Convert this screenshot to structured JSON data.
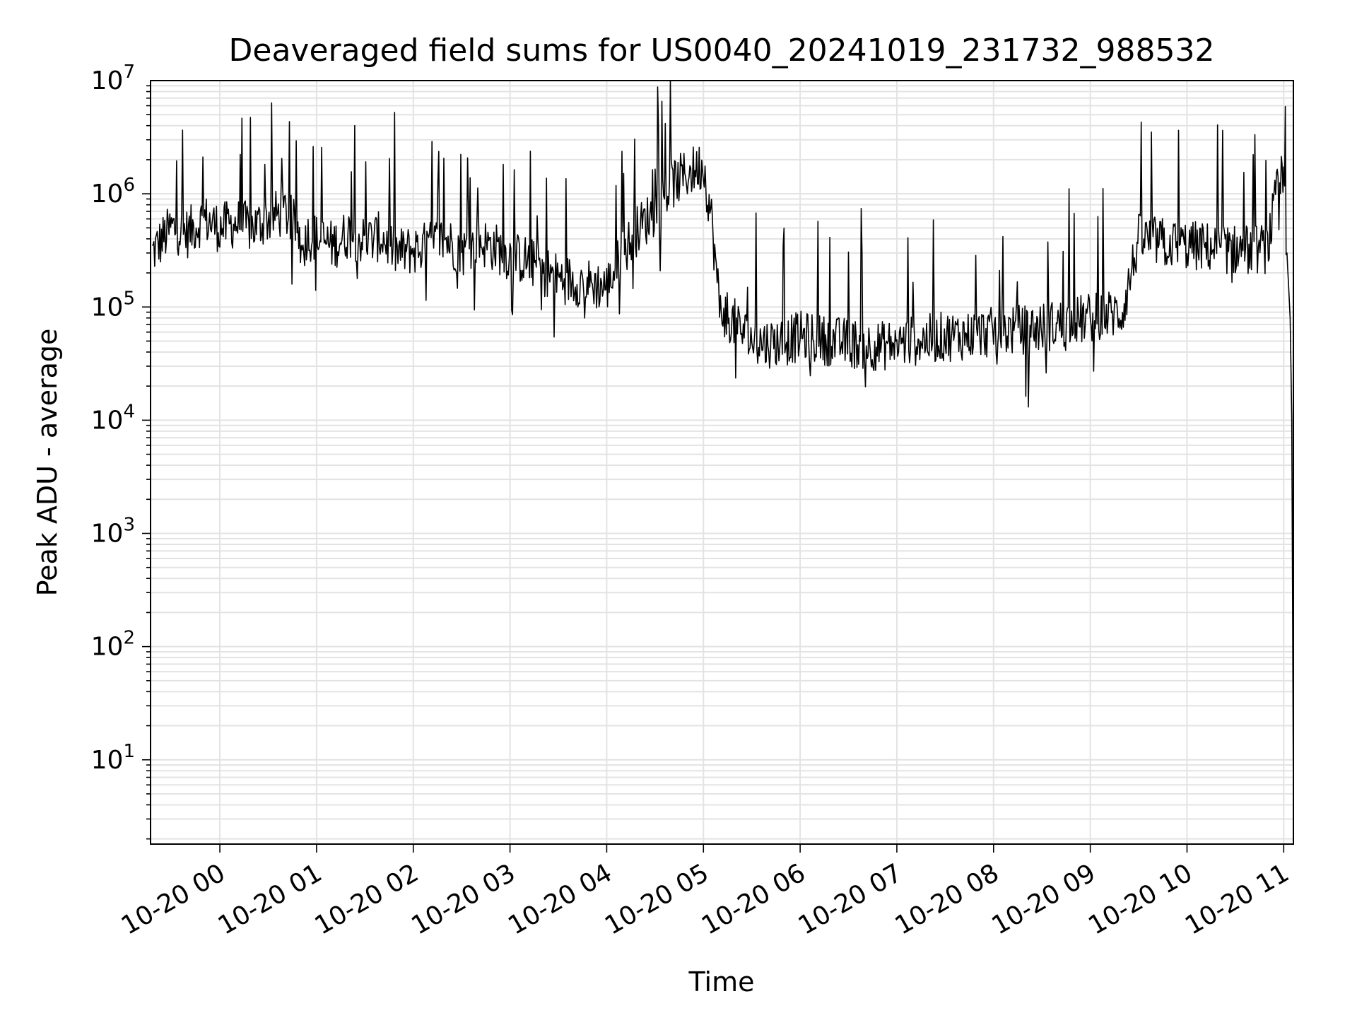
{
  "chart_data": {
    "type": "line",
    "title": "Deaveraged field sums for US0040_20241019_231732_988532",
    "xlabel": "Time",
    "ylabel": "Peak ADU - average",
    "yscale": "log",
    "xlim": [
      "2024-10-19 23:17",
      "2024-10-20 11:06"
    ],
    "ylim": [
      1.8,
      10000000
    ],
    "grid": true,
    "line_color": "#000000",
    "x_ticks": [
      {
        "value": "2024-10-20 00:00",
        "label": "10-20 00"
      },
      {
        "value": "2024-10-20 01:00",
        "label": "10-20 01"
      },
      {
        "value": "2024-10-20 02:00",
        "label": "10-20 02"
      },
      {
        "value": "2024-10-20 03:00",
        "label": "10-20 03"
      },
      {
        "value": "2024-10-20 04:00",
        "label": "10-20 04"
      },
      {
        "value": "2024-10-20 05:00",
        "label": "10-20 05"
      },
      {
        "value": "2024-10-20 06:00",
        "label": "10-20 06"
      },
      {
        "value": "2024-10-20 07:00",
        "label": "10-20 07"
      },
      {
        "value": "2024-10-20 08:00",
        "label": "10-20 08"
      },
      {
        "value": "2024-10-20 09:00",
        "label": "10-20 09"
      },
      {
        "value": "2024-10-20 10:00",
        "label": "10-20 10"
      },
      {
        "value": "2024-10-20 11:00",
        "label": "10-20 11"
      }
    ],
    "y_ticks": [
      {
        "value": 10,
        "base": "10",
        "exp": "1"
      },
      {
        "value": 100,
        "base": "10",
        "exp": "2"
      },
      {
        "value": 1000,
        "base": "10",
        "exp": "3"
      },
      {
        "value": 10000,
        "base": "10",
        "exp": "4"
      },
      {
        "value": 100000,
        "base": "10",
        "exp": "5"
      },
      {
        "value": 1000000,
        "base": "10",
        "exp": "6"
      },
      {
        "value": 10000000,
        "base": "10",
        "exp": "7"
      }
    ],
    "series": [
      {
        "x": [
          "2024-10-19 23:18",
          "2024-10-19 23:30",
          "2024-10-19 23:40",
          "2024-10-19 23:50",
          "2024-10-20 00:00",
          "2024-10-20 00:10",
          "2024-10-20 00:20",
          "2024-10-20 00:30",
          "2024-10-20 00:40",
          "2024-10-20 00:50",
          "2024-10-20 01:00",
          "2024-10-20 01:10",
          "2024-10-20 01:20",
          "2024-10-20 01:30",
          "2024-10-20 01:40",
          "2024-10-20 01:50",
          "2024-10-20 02:00",
          "2024-10-20 02:10",
          "2024-10-20 02:20",
          "2024-10-20 02:30",
          "2024-10-20 02:40",
          "2024-10-20 02:50",
          "2024-10-20 03:00",
          "2024-10-20 03:10",
          "2024-10-20 03:20",
          "2024-10-20 03:30",
          "2024-10-20 03:40",
          "2024-10-20 03:50",
          "2024-10-20 04:00",
          "2024-10-20 04:10",
          "2024-10-20 04:20",
          "2024-10-20 04:30",
          "2024-10-20 04:40",
          "2024-10-20 04:50",
          "2024-10-20 05:00",
          "2024-10-20 05:05",
          "2024-10-20 05:10",
          "2024-10-20 05:20",
          "2024-10-20 05:30",
          "2024-10-20 05:40",
          "2024-10-20 05:50",
          "2024-10-20 06:00",
          "2024-10-20 06:10",
          "2024-10-20 06:20",
          "2024-10-20 06:30",
          "2024-10-20 06:40",
          "2024-10-20 06:50",
          "2024-10-20 07:00",
          "2024-10-20 07:10",
          "2024-10-20 07:20",
          "2024-10-20 07:30",
          "2024-10-20 07:40",
          "2024-10-20 07:50",
          "2024-10-20 08:00",
          "2024-10-20 08:10",
          "2024-10-20 08:20",
          "2024-10-20 08:30",
          "2024-10-20 08:40",
          "2024-10-20 08:50",
          "2024-10-20 09:00",
          "2024-10-20 09:10",
          "2024-10-20 09:20",
          "2024-10-20 09:30",
          "2024-10-20 09:40",
          "2024-10-20 09:50",
          "2024-10-20 10:00",
          "2024-10-20 10:10",
          "2024-10-20 10:20",
          "2024-10-20 10:30",
          "2024-10-20 10:40",
          "2024-10-20 10:50",
          "2024-10-20 10:55",
          "2024-10-20 10:58",
          "2024-10-20 11:00",
          "2024-10-20 11:02",
          "2024-10-20 11:04",
          "2024-10-20 11:05",
          "2024-10-20 11:06"
        ],
        "y": [
          300000,
          500000,
          450000,
          600000,
          500000,
          550000,
          500000,
          600000,
          700000,
          450000,
          400000,
          350000,
          450000,
          380000,
          420000,
          300000,
          320000,
          350000,
          400000,
          300000,
          380000,
          340000,
          280000,
          260000,
          220000,
          180000,
          170000,
          160000,
          150000,
          300000,
          500000,
          700000,
          1200000,
          1500000,
          1800000,
          600000,
          100000,
          70000,
          50000,
          48000,
          50000,
          55000,
          52000,
          50000,
          48000,
          46000,
          45000,
          48000,
          50000,
          52000,
          55000,
          56000,
          58000,
          60000,
          62000,
          64000,
          66000,
          70000,
          75000,
          80000,
          85000,
          90000,
          400000,
          380000,
          360000,
          350000,
          340000,
          330000,
          320000,
          320000,
          330000,
          900000,
          1300000,
          1200000,
          300000,
          80000,
          10000,
          4
        ]
      }
    ]
  }
}
